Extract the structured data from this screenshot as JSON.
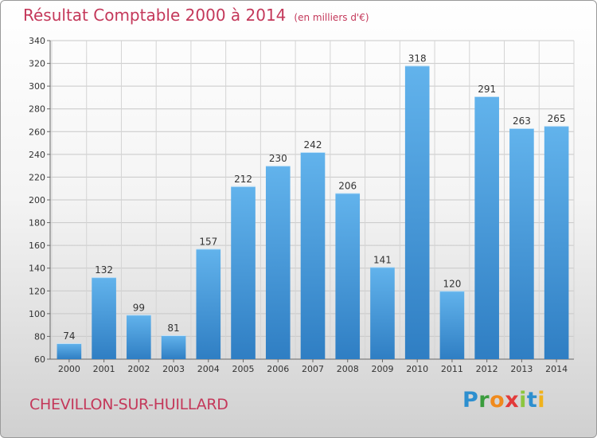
{
  "header": {
    "title": "Résultat Comptable 2000 à 2014",
    "unit": "(en milliers d'€)"
  },
  "footer": {
    "city": "CHEVILLON-SUR-HUILLARD",
    "logo_letters": [
      "P",
      "r",
      "o",
      "x",
      "i",
      "t",
      "i"
    ]
  },
  "colors": {
    "title": "#c4385a",
    "bar_light": "#62b3ec",
    "bar_dark": "#2f7ec3",
    "logo": [
      "#2d8fcf",
      "#3a9c3d",
      "#f08a1c",
      "#e23a3a",
      "#8cc63f",
      "#2d8fcf",
      "#f0b21c"
    ]
  },
  "chart_data": {
    "type": "bar",
    "title": "Résultat Comptable 2000 à 2014",
    "xlabel": "",
    "ylabel": "",
    "ylim": [
      60,
      340
    ],
    "yticks": [
      60,
      80,
      100,
      120,
      140,
      160,
      180,
      200,
      220,
      240,
      260,
      280,
      300,
      320,
      340
    ],
    "grid": true,
    "categories": [
      "2000",
      "2001",
      "2002",
      "2003",
      "2004",
      "2005",
      "2006",
      "2007",
      "2008",
      "2009",
      "2010",
      "2011",
      "2012",
      "2013",
      "2014"
    ],
    "values": [
      74,
      132,
      99,
      81,
      157,
      212,
      230,
      242,
      206,
      141,
      318,
      120,
      291,
      263,
      265
    ]
  }
}
